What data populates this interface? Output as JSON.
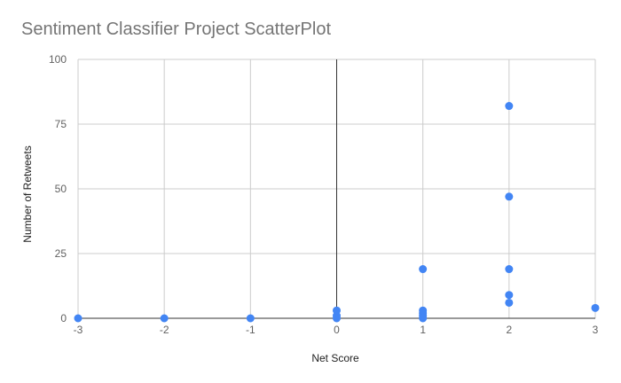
{
  "chart_data": {
    "type": "scatter",
    "title": "Sentiment Classifier Project ScatterPlot",
    "xlabel": "Net Score",
    "ylabel": "Number of Retweets",
    "xlim": [
      -3,
      3
    ],
    "ylim": [
      0,
      100
    ],
    "xticks": [
      -3,
      -2,
      -1,
      0,
      1,
      2,
      3
    ],
    "yticks": [
      0,
      25,
      50,
      75,
      100
    ],
    "grid": true,
    "legend": "none",
    "series": [
      {
        "color": "#4285f4",
        "points": [
          {
            "x": -3,
            "y": 0
          },
          {
            "x": -2,
            "y": 0
          },
          {
            "x": -1,
            "y": 0
          },
          {
            "x": 0,
            "y": 0
          },
          {
            "x": 0,
            "y": 1
          },
          {
            "x": 0,
            "y": 3
          },
          {
            "x": 1,
            "y": 0
          },
          {
            "x": 1,
            "y": 1
          },
          {
            "x": 1,
            "y": 2
          },
          {
            "x": 1,
            "y": 3
          },
          {
            "x": 1,
            "y": 19
          },
          {
            "x": 2,
            "y": 6
          },
          {
            "x": 2,
            "y": 9
          },
          {
            "x": 2,
            "y": 19
          },
          {
            "x": 2,
            "y": 47
          },
          {
            "x": 2,
            "y": 82
          },
          {
            "x": 3,
            "y": 4
          }
        ]
      }
    ]
  }
}
